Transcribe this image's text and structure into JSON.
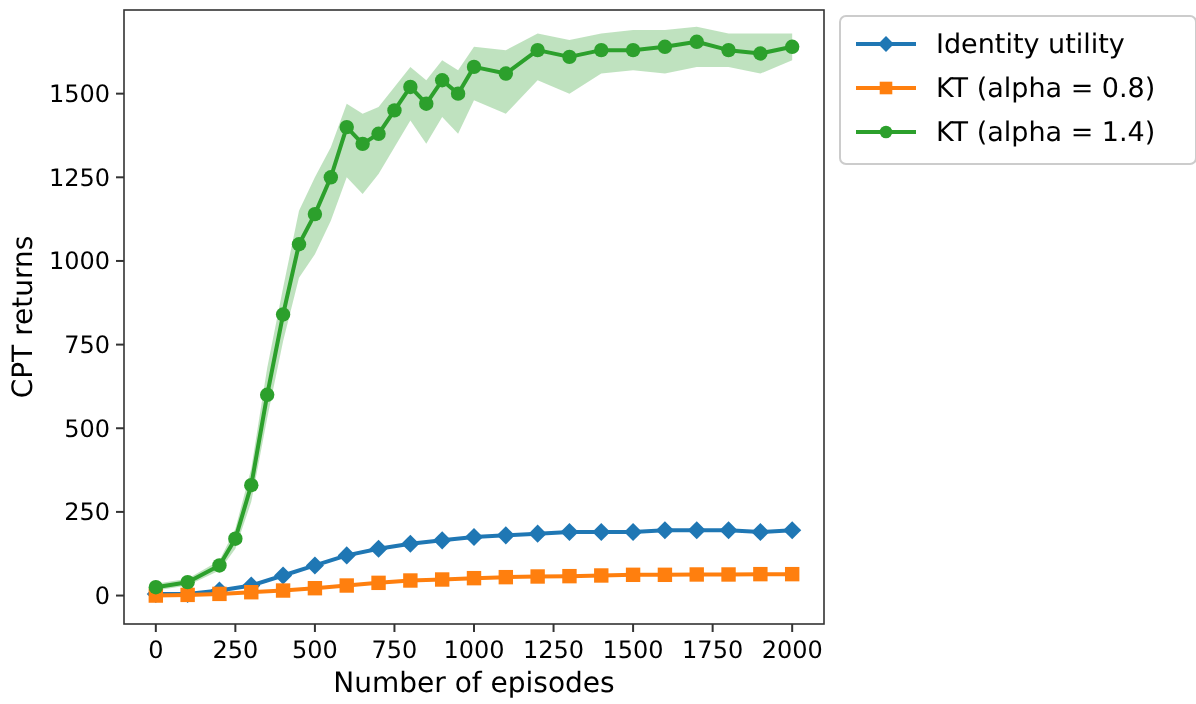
{
  "chart_data": {
    "type": "line",
    "xlabel": "Number of episodes",
    "ylabel": "CPT returns",
    "xlim": [
      -100,
      2100
    ],
    "ylim": [
      -85,
      1750
    ],
    "xticks": [
      0,
      250,
      500,
      750,
      1000,
      1250,
      1500,
      1750,
      2000
    ],
    "yticks": [
      0,
      250,
      500,
      750,
      1000,
      1250,
      1500
    ],
    "legend": "top right",
    "grid": false,
    "series": [
      {
        "name": "Identity utility",
        "color": "#1f77b4",
        "marker": "diamond",
        "x": [
          0,
          100,
          200,
          300,
          400,
          500,
          600,
          700,
          800,
          900,
          1000,
          1100,
          1200,
          1300,
          1400,
          1500,
          1600,
          1700,
          1800,
          1900,
          2000
        ],
        "values": [
          5,
          5,
          15,
          30,
          60,
          90,
          120,
          140,
          155,
          165,
          175,
          180,
          185,
          190,
          190,
          190,
          195,
          195,
          195,
          190,
          195
        ]
      },
      {
        "name": "KT (alpha = 0.8)",
        "color": "#ff7f0e",
        "marker": "square",
        "x": [
          0,
          100,
          200,
          300,
          400,
          500,
          600,
          700,
          800,
          900,
          1000,
          1100,
          1200,
          1300,
          1400,
          1500,
          1600,
          1700,
          1800,
          1900,
          2000
        ],
        "values": [
          0,
          2,
          5,
          10,
          15,
          22,
          30,
          38,
          45,
          48,
          52,
          55,
          57,
          58,
          60,
          62,
          62,
          63,
          63,
          64,
          64
        ]
      },
      {
        "name": "KT (alpha = 1.4)",
        "color": "#2ca02c",
        "marker": "circle",
        "x": [
          0,
          100,
          200,
          250,
          300,
          350,
          400,
          450,
          500,
          550,
          600,
          650,
          700,
          750,
          800,
          850,
          900,
          950,
          1000,
          1100,
          1200,
          1300,
          1400,
          1500,
          1600,
          1700,
          1800,
          1900,
          2000
        ],
        "values": [
          25,
          40,
          90,
          170,
          330,
          600,
          840,
          1050,
          1140,
          1250,
          1400,
          1350,
          1380,
          1450,
          1520,
          1470,
          1540,
          1500,
          1580,
          1560,
          1630,
          1610,
          1630,
          1630,
          1640,
          1655,
          1630,
          1620,
          1640
        ],
        "lower": [
          15,
          30,
          75,
          140,
          280,
          530,
          760,
          950,
          1020,
          1120,
          1250,
          1200,
          1260,
          1340,
          1420,
          1350,
          1430,
          1380,
          1480,
          1440,
          1540,
          1500,
          1560,
          1570,
          1560,
          1580,
          1580,
          1560,
          1600
        ],
        "upper": [
          35,
          50,
          105,
          200,
          380,
          680,
          920,
          1150,
          1250,
          1340,
          1470,
          1440,
          1460,
          1520,
          1580,
          1540,
          1600,
          1570,
          1640,
          1630,
          1680,
          1660,
          1680,
          1690,
          1690,
          1700,
          1680,
          1680,
          1680
        ]
      }
    ]
  }
}
